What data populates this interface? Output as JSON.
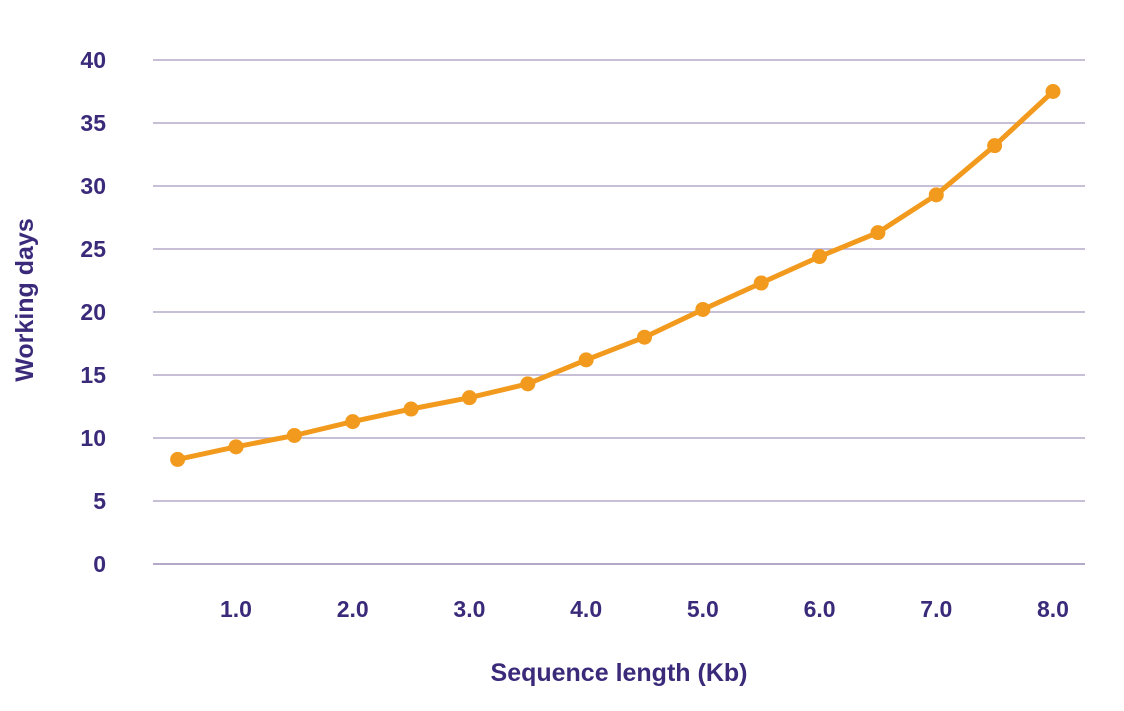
{
  "chart_data": {
    "type": "line",
    "xlabel": "Sequence length (Kb)",
    "ylabel": "Working days",
    "xlim": [
      0.5,
      8.0
    ],
    "ylim": [
      0,
      40
    ],
    "grid": true,
    "legend": "none",
    "y_ticks": [
      "0",
      "5",
      "10",
      "15",
      "20",
      "25",
      "30",
      "35",
      "40"
    ],
    "x_ticks": [
      {
        "value": 1.0,
        "label": "1.0"
      },
      {
        "value": 2.0,
        "label": "2.0"
      },
      {
        "value": 3.0,
        "label": "3.0"
      },
      {
        "value": 4.0,
        "label": "4.0"
      },
      {
        "value": 5.0,
        "label": "5.0"
      },
      {
        "value": 6.0,
        "label": "6.0"
      },
      {
        "value": 7.0,
        "label": "7.0"
      },
      {
        "value": 8.0,
        "label": "8.0"
      }
    ],
    "series": [
      {
        "x": [
          0.5,
          1.0,
          1.5,
          2.0,
          2.5,
          3.0,
          3.5,
          4.0,
          4.5,
          5.0,
          5.5,
          6.0,
          6.5,
          7.0,
          7.5,
          8.0
        ],
        "y": [
          8.3,
          9.3,
          10.2,
          11.3,
          12.3,
          13.2,
          14.3,
          16.2,
          18.0,
          20.2,
          22.3,
          24.4,
          26.3,
          29.3,
          33.2,
          37.5
        ]
      }
    ],
    "colors": {
      "line": "#f29a1e",
      "grid": "#b3aac9",
      "text": "#3b2a7a"
    }
  }
}
